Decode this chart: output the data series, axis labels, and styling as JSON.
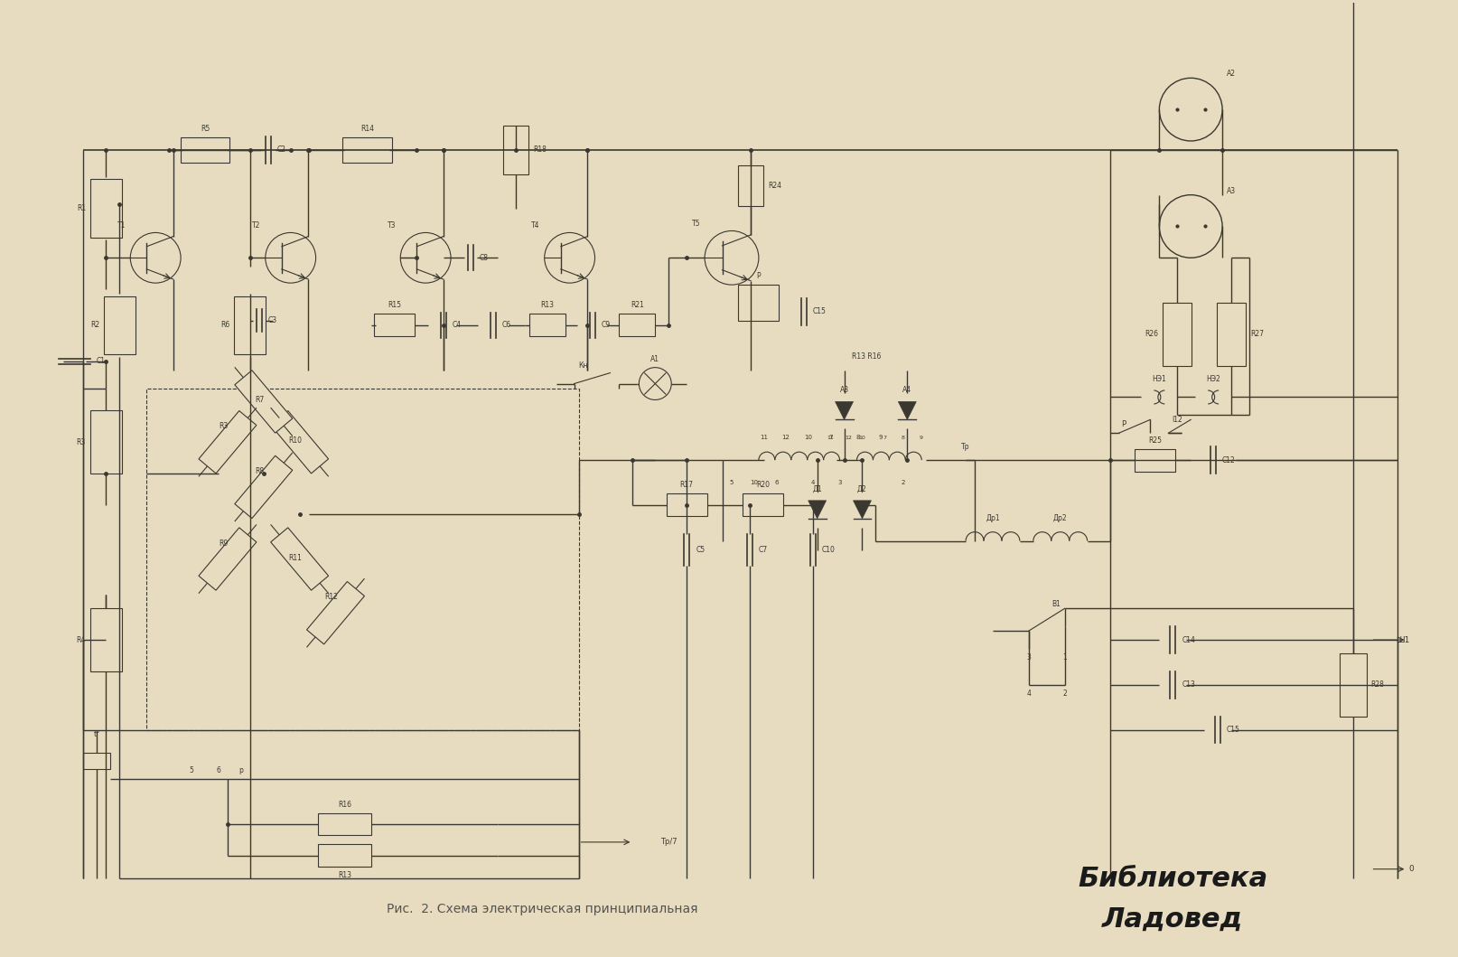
{
  "bg_color": "#e8dcc0",
  "line_color": "#3a3830",
  "line_color2": "#4a4840",
  "title_text": "Рис.  2. Схема электрическая принципиальная",
  "wm1": "Библиотека",
  "wm2": "Ладовед",
  "fig_width": 16.14,
  "fig_height": 10.59,
  "dpi": 100
}
